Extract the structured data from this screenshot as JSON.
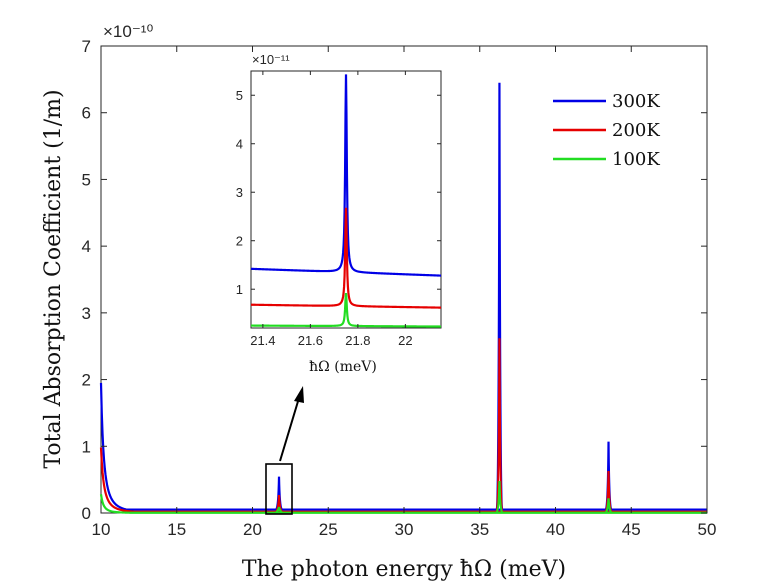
{
  "chart_data": {
    "type": "line",
    "title": "",
    "xlabel": "The photon energy ħΩ (meV)",
    "ylabel": "Total Absorption Coefficient (1/m)",
    "y_exponent": "×10⁻¹⁰",
    "xlim": [
      10,
      50
    ],
    "ylim": [
      0,
      7
    ],
    "xticks": [
      "10",
      "15",
      "20",
      "25",
      "30",
      "35",
      "40",
      "45",
      "50"
    ],
    "yticks": [
      "0",
      "1",
      "2",
      "3",
      "4",
      "5",
      "6",
      "7"
    ],
    "legend_position": "top-right",
    "series": [
      {
        "name": "300K",
        "color": "#0000e6",
        "baseline": {
          "amp": 1.95,
          "x0": 9.6,
          "p": 2.2,
          "floor": 0.05
        },
        "peaks": [
          {
            "x": 21.75,
            "y": 0.545
          },
          {
            "x": 36.3,
            "y": 6.45
          },
          {
            "x": 43.5,
            "y": 1.07
          }
        ]
      },
      {
        "name": "200K",
        "color": "#e60000",
        "baseline": {
          "amp": 0.98,
          "x0": 9.6,
          "p": 2.1,
          "floor": 0.02
        },
        "peaks": [
          {
            "x": 21.75,
            "y": 0.27
          },
          {
            "x": 36.3,
            "y": 2.62
          },
          {
            "x": 43.5,
            "y": 0.63
          }
        ]
      },
      {
        "name": "100K",
        "color": "#22dd22",
        "baseline": {
          "amp": 0.28,
          "x0": 9.6,
          "p": 2.4,
          "floor": 0.004
        },
        "peaks": [
          {
            "x": 21.75,
            "y": 0.09
          },
          {
            "x": 36.3,
            "y": 0.48
          },
          {
            "x": 43.5,
            "y": 0.22
          }
        ]
      }
    ],
    "inset": {
      "xlabel": "ħΩ (meV)",
      "y_exponent": "×10⁻¹¹",
      "xlim": [
        21.35,
        22.15
      ],
      "ylim": [
        0.2,
        5.5
      ],
      "xticks": [
        "21.4",
        "21.6",
        "21.8",
        "22"
      ],
      "yticks": [
        "1",
        "2",
        "3",
        "4",
        "5"
      ],
      "peak_x": 21.75,
      "series": [
        {
          "name": "300K",
          "color": "#0000e6",
          "left": 1.42,
          "right": 1.28,
          "peak": 5.43
        },
        {
          "name": "200K",
          "color": "#e60000",
          "left": 0.68,
          "right": 0.62,
          "peak": 2.68
        },
        {
          "name": "100K",
          "color": "#22dd22",
          "left": 0.25,
          "right": 0.23,
          "peak": 0.92
        }
      ]
    },
    "zoom_box_x": [
      21.3,
      22.3
    ]
  }
}
